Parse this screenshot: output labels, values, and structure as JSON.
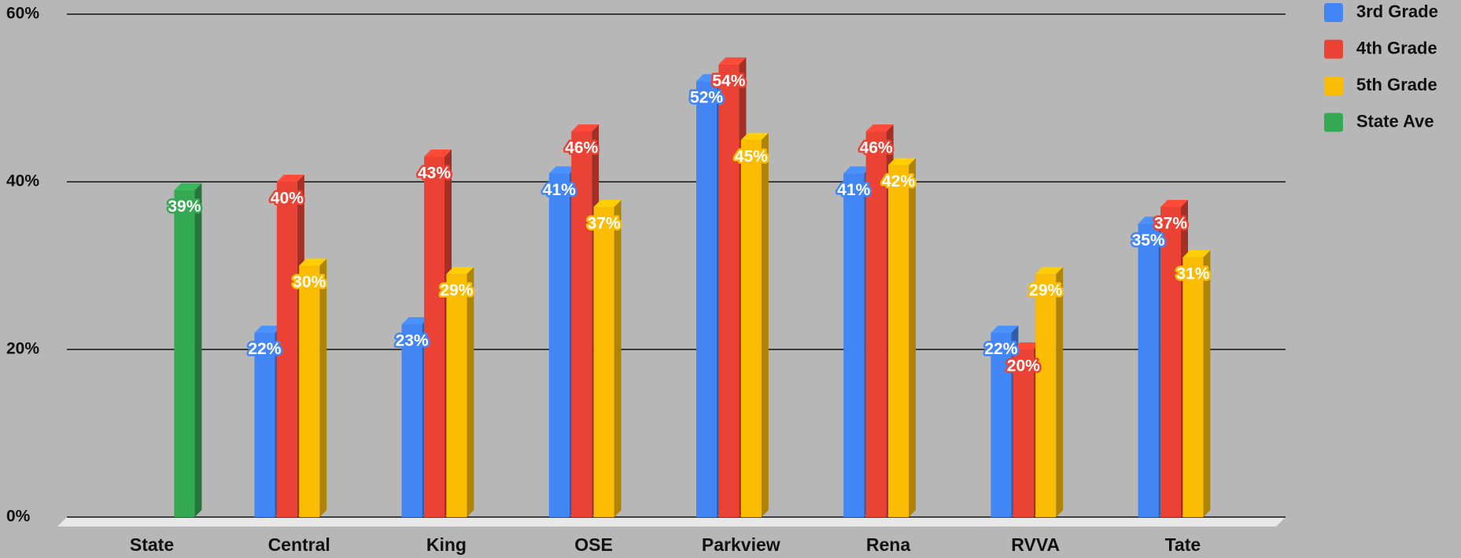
{
  "chart_data": {
    "type": "bar3d",
    "categories": [
      "State",
      "Central",
      "King",
      "OSE",
      "Parkview",
      "Rena",
      "RVVA",
      "Tate"
    ],
    "series": [
      {
        "name": "3rd Grade",
        "color": "#4285f4",
        "values": [
          null,
          22,
          23,
          41,
          52,
          41,
          22,
          35
        ],
        "value_labels": [
          null,
          "22%",
          "23%",
          "41%",
          "52%",
          "41%",
          "22%",
          "35%"
        ]
      },
      {
        "name": "4th Grade",
        "color": "#ea4335",
        "values": [
          null,
          40,
          43,
          46,
          54,
          46,
          20,
          37
        ],
        "value_labels": [
          null,
          "40%",
          "43%",
          "46%",
          "54%",
          "46%",
          "20%",
          "37%"
        ]
      },
      {
        "name": "5th Grade",
        "color": "#fbbc04",
        "values": [
          null,
          30,
          29,
          37,
          45,
          42,
          29,
          31
        ],
        "value_labels": [
          null,
          "30%",
          "29%",
          "37%",
          "45%",
          "42%",
          "29%",
          "31%"
        ]
      },
      {
        "name": "State Ave",
        "color": "#34a853",
        "values": [
          39,
          null,
          null,
          null,
          null,
          null,
          null,
          null
        ],
        "value_labels": [
          "39%",
          null,
          null,
          null,
          null,
          null,
          null,
          null
        ]
      }
    ],
    "ylim": [
      0,
      60
    ],
    "yticks": [
      {
        "value": 0,
        "label": "0%"
      },
      {
        "value": 20,
        "label": "20%"
      },
      {
        "value": 40,
        "label": "40%"
      },
      {
        "value": 60,
        "label": "60%"
      }
    ],
    "grid": true,
    "legend": "right"
  }
}
